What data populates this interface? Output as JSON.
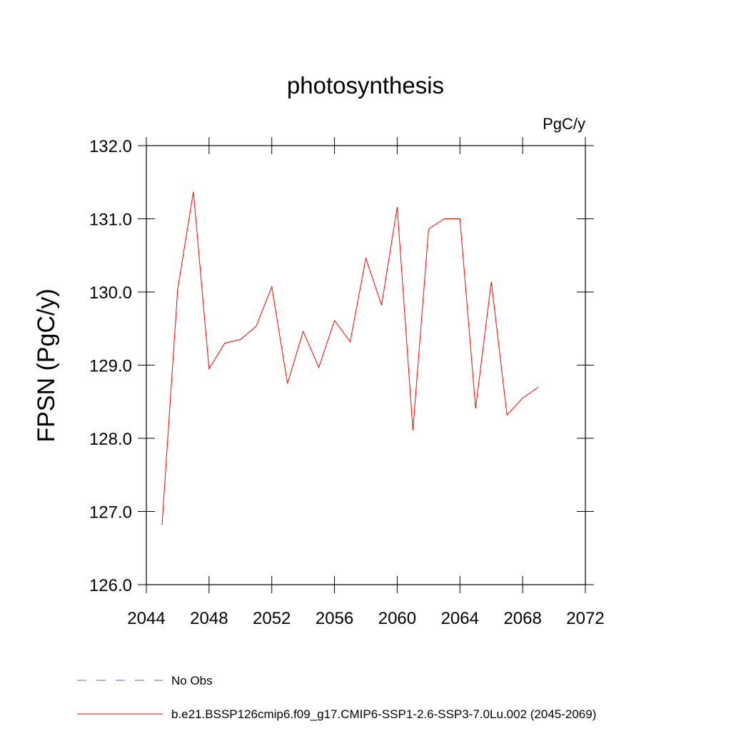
{
  "chart_data": {
    "type": "line",
    "title": "photosynthesis",
    "units_label": "PgC/y",
    "y_label": "FPSN  (PgC/y)",
    "x": [
      2045,
      2046,
      2047,
      2048,
      2049,
      2050,
      2051,
      2052,
      2053,
      2054,
      2055,
      2056,
      2057,
      2058,
      2059,
      2060,
      2061,
      2062,
      2063,
      2064,
      2065,
      2066,
      2067,
      2068,
      2069
    ],
    "series": [
      {
        "color": "#ff0000",
        "values": [
          126.82,
          130.04,
          131.37,
          128.95,
          129.3,
          129.35,
          129.53,
          130.07,
          128.75,
          129.46,
          128.97,
          129.61,
          129.32,
          130.46,
          129.82,
          131.16,
          128.11,
          130.86,
          131.0,
          131.0,
          128.41,
          130.14,
          128.32,
          128.55,
          128.7
        ]
      }
    ],
    "xlim": [
      2044,
      2072
    ],
    "xticks": [
      2044,
      2048,
      2052,
      2056,
      2060,
      2064,
      2068,
      2072
    ],
    "ylim": [
      126,
      132
    ],
    "yticks": [
      {
        "value": 126,
        "label": "126.0"
      },
      {
        "value": 127,
        "label": "127.0"
      },
      {
        "value": 128,
        "label": "128.0"
      },
      {
        "value": 129,
        "label": "129.0"
      },
      {
        "value": 130,
        "label": "130.0"
      },
      {
        "value": 131,
        "label": "131.0"
      },
      {
        "value": 132,
        "label": "132.0"
      }
    ],
    "grid": false,
    "legend": [
      {
        "name": "No Obs",
        "color": "#6a5fb0",
        "dashed": true
      },
      {
        "name": "b.e21.BSSP126cmip6.f09_g17.CMIP6-SSP1-2.6-SSP3-7.0Lu.002 (2045-2069)",
        "color": "#ff0000",
        "dashed": false
      }
    ]
  }
}
